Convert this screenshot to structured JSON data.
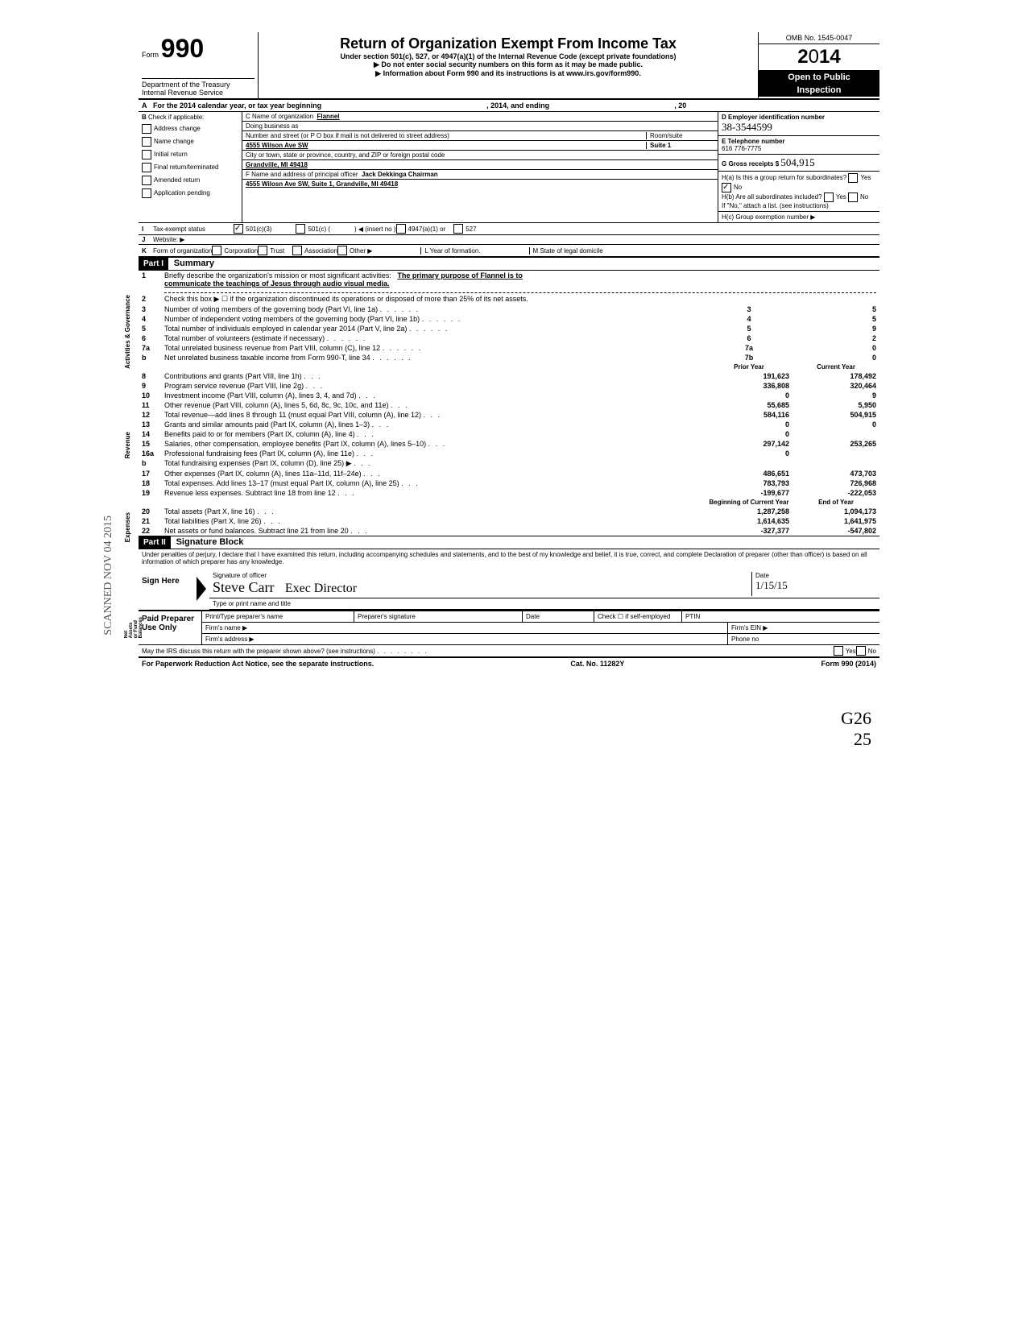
{
  "header": {
    "form_label": "Form",
    "form_number": "990",
    "dept": "Department of the Treasury",
    "irs": "Internal Revenue Service",
    "title": "Return of Organization Exempt From Income Tax",
    "subtitle1": "Under section 501(c), 527, or 4947(a)(1) of the Internal Revenue Code (except private foundations)",
    "subtitle2": "▶ Do not enter social security numbers on this form as it may be made public.",
    "subtitle3": "▶ Information about Form 990 and its instructions is at www.irs.gov/form990.",
    "omb": "OMB No. 1545-0047",
    "year": "2014",
    "open": "Open to Public",
    "inspection": "Inspection"
  },
  "row_a": {
    "label": "A",
    "text1": "For the 2014 calendar year, or tax year beginning",
    "text2": ", 2014, and ending",
    "text3": ", 20"
  },
  "col_b": {
    "label": "B",
    "check_label": "Check if applicable:",
    "items": [
      "Address change",
      "Name change",
      "Initial return",
      "Final return/terminated",
      "Amended return",
      "Application pending"
    ]
  },
  "col_c": {
    "c_label": "C Name of organization",
    "c_value": "Flannel",
    "dba": "Doing business as",
    "street_label": "Number and street (or P O box if mail is not delivered to street address)",
    "street_value": "4555 Wilson Ave SW",
    "room_label": "Room/suite",
    "room_value": "Suite 1",
    "city_label": "City or town, state or province, country, and ZIP or foreign postal code",
    "city_value": "Grandville, MI 49418",
    "f_label": "F Name and address of principal officer",
    "f_value": "Jack Dekkinga Chairman",
    "f_addr": "4555 Wilosn Ave SW, Suite 1, Grandville, MI 49418"
  },
  "col_d": {
    "d_label": "D Employer identification number",
    "d_value": "38-3544599",
    "e_label": "E Telephone number",
    "e_value": "616 776-7775",
    "g_label": "G Gross receipts $",
    "g_value": "504,915",
    "ha_label": "H(a) Is this a group return for subordinates?",
    "hb_label": "H(b) Are all subordinates included?",
    "hb_note": "If \"No,\" attach a list. (see instructions)",
    "hc_label": "H(c) Group exemption number ▶"
  },
  "row_i": {
    "label": "I",
    "text": "Tax-exempt status",
    "opt1": "501(c)(3)",
    "opt2": "501(c) (",
    "opt2b": ") ◀ (insert no )",
    "opt3": "4947(a)(1) or",
    "opt4": "527"
  },
  "row_j": {
    "label": "J",
    "text": "Website: ▶"
  },
  "row_k": {
    "label": "K",
    "text": "Form of organization",
    "opts": [
      "Corporation",
      "Trust",
      "Association",
      "Other ▶"
    ],
    "l_label": "L Year of formation.",
    "m_label": "M State of legal domicile"
  },
  "part1": {
    "header": "Part I",
    "title": "Summary",
    "gov_label": "Activities & Governance",
    "rev_label": "Revenue",
    "exp_label": "Expenses",
    "net_label": "Net Assets or Fund Balances",
    "line1a": "Briefly describe the organization's mission or most significant activities:",
    "line1b": "The primary purpose of Flannel is to",
    "line1c": "communicate the teachings of Jesus through audio visual media.",
    "line2": "Check this box ▶ ☐ if the organization discontinued its operations or disposed of more than 25% of its net assets.",
    "rows_gov": [
      {
        "n": "3",
        "t": "Number of voting members of the governing body (Part VI, line 1a)",
        "b": "3",
        "v": "5"
      },
      {
        "n": "4",
        "t": "Number of independent voting members of the governing body (Part VI, line 1b)",
        "b": "4",
        "v": "5"
      },
      {
        "n": "5",
        "t": "Total number of individuals employed in calendar year 2014 (Part V, line 2a)",
        "b": "5",
        "v": "9"
      },
      {
        "n": "6",
        "t": "Total number of volunteers (estimate if necessary)",
        "b": "6",
        "v": "2"
      },
      {
        "n": "7a",
        "t": "Total unrelated business revenue from Part VIII, column (C), line 12",
        "b": "7a",
        "v": "0"
      },
      {
        "n": "b",
        "t": "Net unrelated business taxable income from Form 990-T, line 34",
        "b": "7b",
        "v": "0"
      }
    ],
    "prior_hdr": "Prior Year",
    "current_hdr": "Current Year",
    "rows_rev": [
      {
        "n": "8",
        "t": "Contributions and grants (Part VIII, line 1h)",
        "p": "191,623",
        "c": "178,492"
      },
      {
        "n": "9",
        "t": "Program service revenue (Part VIII, line 2g)",
        "p": "336,808",
        "c": "320,464"
      },
      {
        "n": "10",
        "t": "Investment income (Part VIII, column (A), lines 3, 4, and 7d)",
        "p": "0",
        "c": "9"
      },
      {
        "n": "11",
        "t": "Other revenue (Part VIII, column (A), lines 5, 6d, 8c, 9c, 10c, and 11e)",
        "p": "55,685",
        "c": "5,950"
      },
      {
        "n": "12",
        "t": "Total revenue—add lines 8 through 11 (must equal Part VIII, column (A), line 12)",
        "p": "584,116",
        "c": "504,915"
      }
    ],
    "rows_exp": [
      {
        "n": "13",
        "t": "Grants and similar amounts paid (Part IX, column (A), lines 1–3)",
        "p": "0",
        "c": "0"
      },
      {
        "n": "14",
        "t": "Benefits paid to or for members (Part IX, column (A), line 4)",
        "p": "0",
        "c": ""
      },
      {
        "n": "15",
        "t": "Salaries, other compensation, employee benefits (Part IX, column (A), lines 5–10)",
        "p": "297,142",
        "c": "253,265"
      },
      {
        "n": "16a",
        "t": "Professional fundraising fees (Part IX, column (A), line 11e)",
        "p": "0",
        "c": ""
      },
      {
        "n": "b",
        "t": "Total fundraising expenses (Part IX, column (D), line 25) ▶",
        "p": "",
        "c": ""
      },
      {
        "n": "17",
        "t": "Other expenses (Part IX, column (A), lines 11a–11d, 11f–24e)",
        "p": "486,651",
        "c": "473,703"
      },
      {
        "n": "18",
        "t": "Total expenses. Add lines 13–17 (must equal Part IX, column (A), line 25)",
        "p": "783,793",
        "c": "726,968"
      },
      {
        "n": "19",
        "t": "Revenue less expenses. Subtract line 18 from line 12",
        "p": "-199,677",
        "c": "-222,053"
      }
    ],
    "beg_hdr": "Beginning of Current Year",
    "end_hdr": "End of Year",
    "rows_net": [
      {
        "n": "20",
        "t": "Total assets (Part X, line 16)",
        "p": "1,287,258",
        "c": "1,094,173"
      },
      {
        "n": "21",
        "t": "Total liabilities (Part X, line 26)",
        "p": "1,614,635",
        "c": "1,641,975"
      },
      {
        "n": "22",
        "t": "Net assets or fund balances. Subtract line 21 from line 20",
        "p": "-327,377",
        "c": "-547,802"
      }
    ]
  },
  "part2": {
    "header": "Part II",
    "title": "Signature Block",
    "penalty": "Under penalties of perjury, I declare that I have examined this return, including accompanying schedules and statements, and to the best of my knowledge and belief, it is true, correct, and complete Declaration of preparer (other than officer) is based on all information of which preparer has any knowledge.",
    "sign": "Sign Here",
    "sig_officer": "Signature of officer",
    "sig_name_hand": "Steve Carr",
    "sig_title_hand": "Exec Director",
    "date_label": "Date",
    "date_hand": "1/15/15",
    "type_label": "Type or print name and title",
    "paid": "Paid Preparer Use Only",
    "prep_name": "Print/Type preparer's name",
    "prep_sig": "Preparer's signature",
    "prep_date": "Date",
    "prep_check": "Check ☐ if self-employed",
    "ptin": "PTIN",
    "firm_name": "Firm's name ▶",
    "firm_ein": "Firm's EIN ▶",
    "firm_addr": "Firm's address ▶",
    "phone": "Phone no",
    "may_irs": "May the IRS discuss this return with the preparer shown above? (see instructions)",
    "yes": "Yes",
    "no": "No"
  },
  "footer": {
    "left": "For Paperwork Reduction Act Notice, see the separate instructions.",
    "center": "Cat. No. 11282Y",
    "right": "Form 990 (2014)"
  },
  "stamp": "SCANNED NOV 04 2015",
  "page_hand1": "G26",
  "page_hand2": "25"
}
